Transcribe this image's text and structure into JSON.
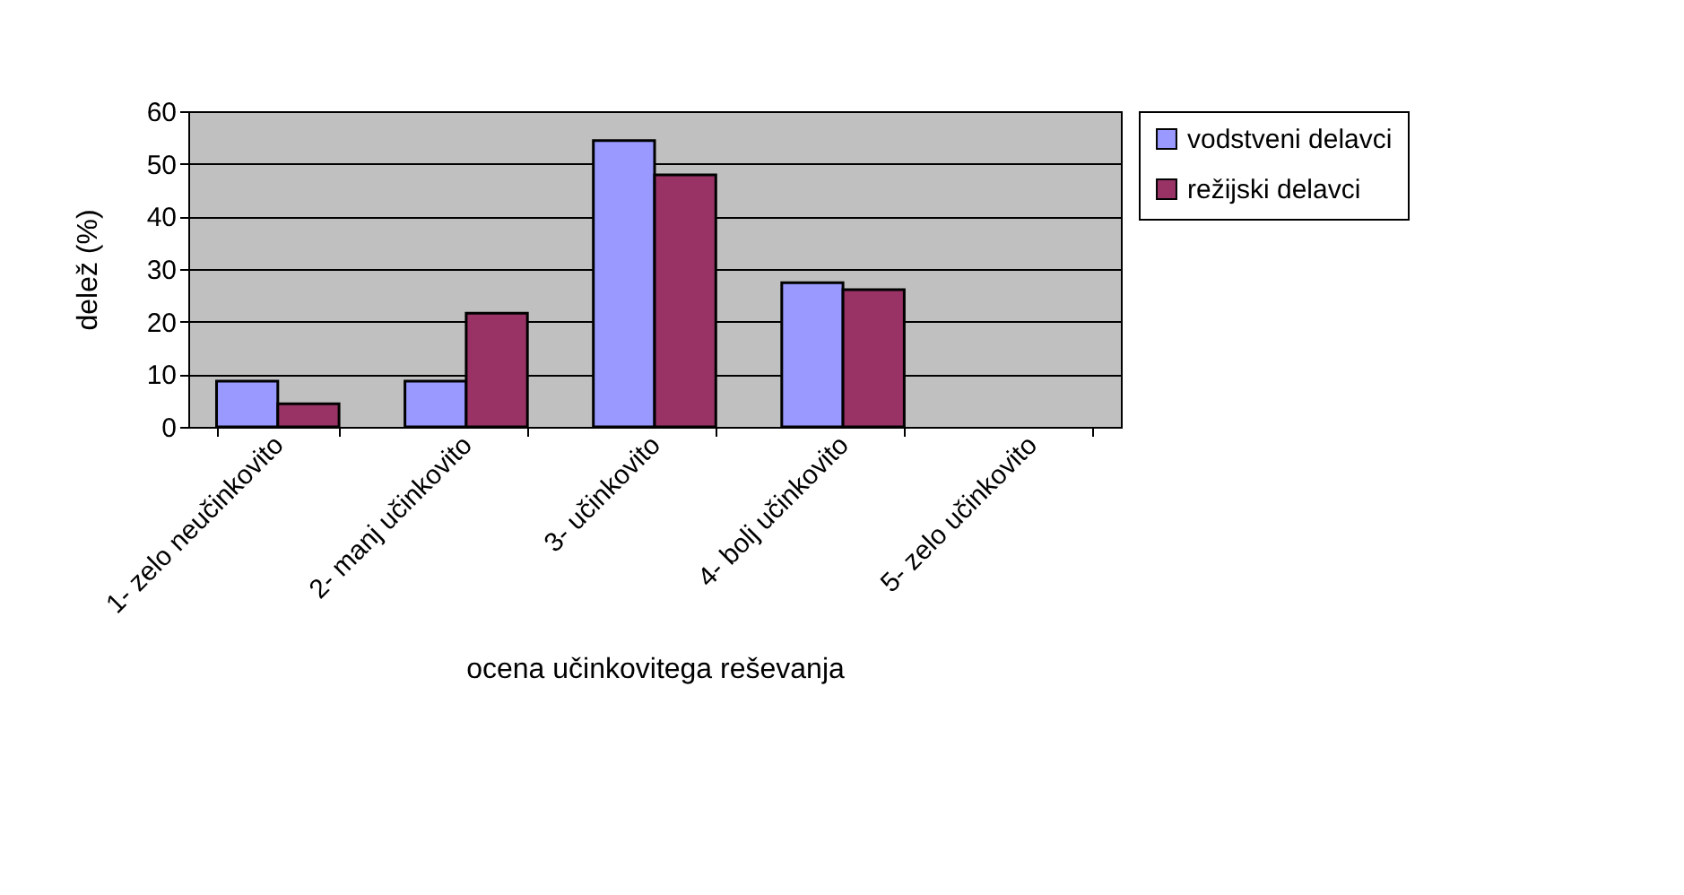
{
  "chart_data": {
    "type": "bar",
    "xlabel": "ocena učinkovitega reševanja",
    "ylabel": "delež (%)",
    "categories": [
      "1- zelo neučinkovito",
      "2- manj učinkovito",
      "3- učinkovito",
      "4- bolj učinkovito",
      "5- zelo učinkovito"
    ],
    "series": [
      {
        "name": "vodstveni delavci",
        "color": "#9999ff",
        "values": [
          8.7,
          8.7,
          54.4,
          27.4,
          null
        ]
      },
      {
        "name": "režijski delavci",
        "color": "#993366",
        "values": [
          4.4,
          21.6,
          47.9,
          26.1,
          null
        ]
      }
    ],
    "ylim": [
      0,
      60
    ],
    "yticks": [
      0,
      10,
      20,
      30,
      40,
      50,
      60
    ],
    "grid": "y",
    "legend": "right"
  }
}
